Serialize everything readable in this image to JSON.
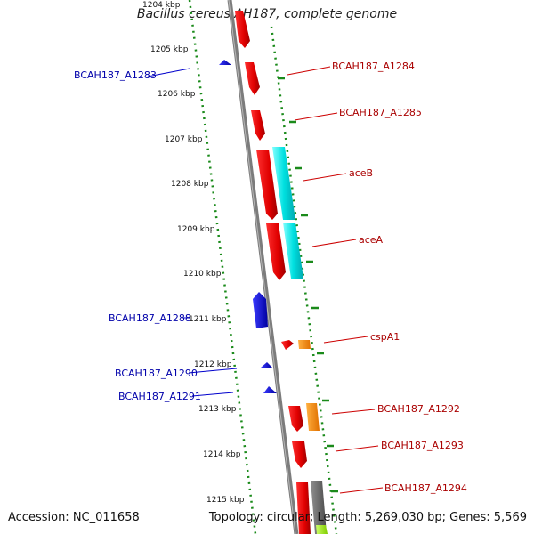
{
  "title": "Bacillus cereus AH187, complete genome",
  "accession": "Accession: NC_011658",
  "topology": "Topology: circular; Length: 5,269,030 bp; Genes: 5,569",
  "colors": {
    "backbone": "#808080",
    "tick_dots": "#1a8a1a",
    "reverse_genes": "#0000dd",
    "forward_genes": "#dd0000",
    "cyan": "#00dddd",
    "orange": "#ff8800",
    "gray": "#6a6a6a",
    "lime": "#99ee00"
  },
  "ticks": [
    {
      "label": "1204 kbp"
    },
    {
      "label": "1205 kbp"
    },
    {
      "label": "1206 kbp"
    },
    {
      "label": "1207 kbp"
    },
    {
      "label": "1208 kbp"
    },
    {
      "label": "1209 kbp"
    },
    {
      "label": "1210 kbp"
    },
    {
      "label": "1211 kbp"
    },
    {
      "label": "1212 kbp"
    },
    {
      "label": "1213 kbp"
    },
    {
      "label": "1214 kbp"
    },
    {
      "label": "1215 kbp"
    }
  ],
  "genes_left": [
    {
      "label": "BCAH187_A1283"
    },
    {
      "label": "BCAH187_A1288"
    },
    {
      "label": "BCAH187_A1290"
    },
    {
      "label": "BCAH187_A1291"
    }
  ],
  "genes_right": [
    {
      "label": "BCAH187_A1284"
    },
    {
      "label": "BCAH187_A1285"
    },
    {
      "label": "aceB"
    },
    {
      "label": "aceA"
    },
    {
      "label": "cspA1"
    },
    {
      "label": "BCAH187_A1292"
    },
    {
      "label": "BCAH187_A1293"
    },
    {
      "label": "BCAH187_A1294"
    }
  ]
}
